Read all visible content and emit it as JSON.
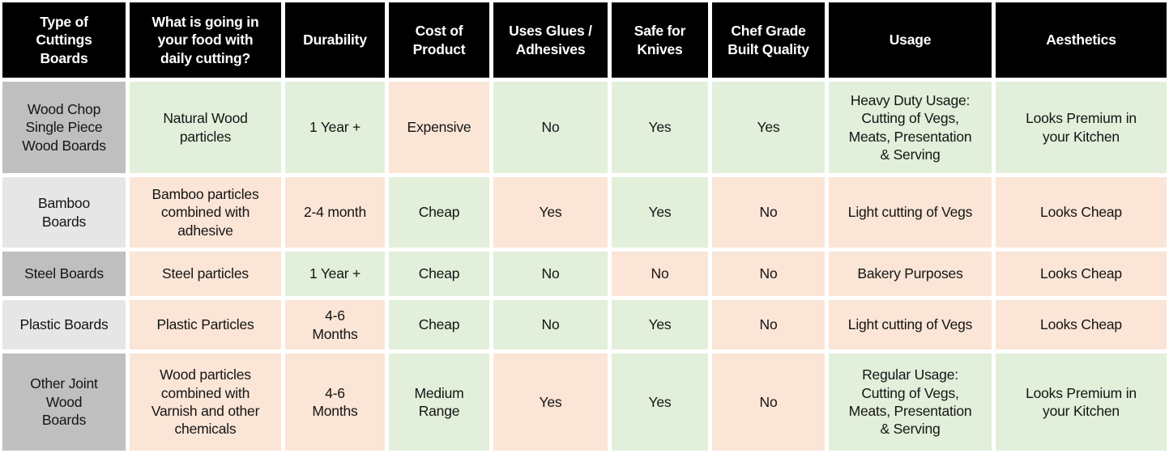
{
  "colors": {
    "page_bg": "#ffffff",
    "header_bg": "#000000",
    "header_text": "#ffffff",
    "body_text": "#141414",
    "positive_cell": "#e2efda",
    "negative_cell": "#fbe5d6",
    "row_label_dark": "#bfbfbf",
    "row_label_light": "#e7e6e6"
  },
  "chart_data": {
    "type": "table",
    "columns": [
      "Type of\nCuttings\nBoards",
      "What is going in\nyour food with\ndaily cutting?",
      "Durability",
      "Cost of\nProduct",
      "Uses Glues /\nAdhesives",
      "Safe for\nKnives",
      "Chef Grade\nBuilt Quality",
      "Usage",
      "Aesthetics"
    ],
    "rows": [
      {
        "cells": [
          {
            "text": "Wood Chop\nSingle Piece\nWood Boards",
            "tone": "label_dark"
          },
          {
            "text": "Natural Wood\nparticles",
            "tone": "positive"
          },
          {
            "text": "1 Year +",
            "tone": "positive"
          },
          {
            "text": "Expensive",
            "tone": "negative"
          },
          {
            "text": "No",
            "tone": "positive"
          },
          {
            "text": "Yes",
            "tone": "positive"
          },
          {
            "text": "Yes",
            "tone": "positive"
          },
          {
            "text": "Heavy Duty Usage:\nCutting of Vegs,\nMeats, Presentation\n& Serving",
            "tone": "positive"
          },
          {
            "text": "Looks Premium in\nyour Kitchen",
            "tone": "positive"
          }
        ]
      },
      {
        "cells": [
          {
            "text": "Bamboo\nBoards",
            "tone": "label_light"
          },
          {
            "text": "Bamboo particles\ncombined with\nadhesive",
            "tone": "negative"
          },
          {
            "text": "2-4 month",
            "tone": "negative"
          },
          {
            "text": "Cheap",
            "tone": "positive"
          },
          {
            "text": "Yes",
            "tone": "negative"
          },
          {
            "text": "Yes",
            "tone": "positive"
          },
          {
            "text": "No",
            "tone": "negative"
          },
          {
            "text": "Light cutting of Vegs",
            "tone": "negative"
          },
          {
            "text": "Looks Cheap",
            "tone": "negative"
          }
        ]
      },
      {
        "cells": [
          {
            "text": "Steel Boards",
            "tone": "label_dark"
          },
          {
            "text": "Steel particles",
            "tone": "negative"
          },
          {
            "text": "1 Year +",
            "tone": "positive"
          },
          {
            "text": "Cheap",
            "tone": "positive"
          },
          {
            "text": "No",
            "tone": "positive"
          },
          {
            "text": "No",
            "tone": "negative"
          },
          {
            "text": "No",
            "tone": "negative"
          },
          {
            "text": "Bakery Purposes",
            "tone": "negative"
          },
          {
            "text": "Looks Cheap",
            "tone": "negative"
          }
        ]
      },
      {
        "cells": [
          {
            "text": "Plastic Boards",
            "tone": "label_light"
          },
          {
            "text": "Plastic Particles",
            "tone": "negative"
          },
          {
            "text": "4-6\nMonths",
            "tone": "negative"
          },
          {
            "text": "Cheap",
            "tone": "positive"
          },
          {
            "text": "No",
            "tone": "positive"
          },
          {
            "text": "Yes",
            "tone": "positive"
          },
          {
            "text": "No",
            "tone": "negative"
          },
          {
            "text": "Light cutting of Vegs",
            "tone": "negative"
          },
          {
            "text": "Looks Cheap",
            "tone": "negative"
          }
        ]
      },
      {
        "cells": [
          {
            "text": "Other Joint\nWood\nBoards",
            "tone": "label_dark"
          },
          {
            "text": "Wood particles\ncombined with\nVarnish and other\nchemicals",
            "tone": "negative"
          },
          {
            "text": "4-6\nMonths",
            "tone": "negative"
          },
          {
            "text": "Medium\nRange",
            "tone": "positive"
          },
          {
            "text": "Yes",
            "tone": "negative"
          },
          {
            "text": "Yes",
            "tone": "positive"
          },
          {
            "text": "No",
            "tone": "negative"
          },
          {
            "text": "Regular Usage:\nCutting of Vegs,\nMeats, Presentation\n& Serving",
            "tone": "positive"
          },
          {
            "text": "Looks Premium in\nyour Kitchen",
            "tone": "positive"
          }
        ]
      }
    ],
    "legend": {
      "positive_cell_meaning": "favorable attribute",
      "negative_cell_meaning": "unfavorable attribute"
    }
  }
}
